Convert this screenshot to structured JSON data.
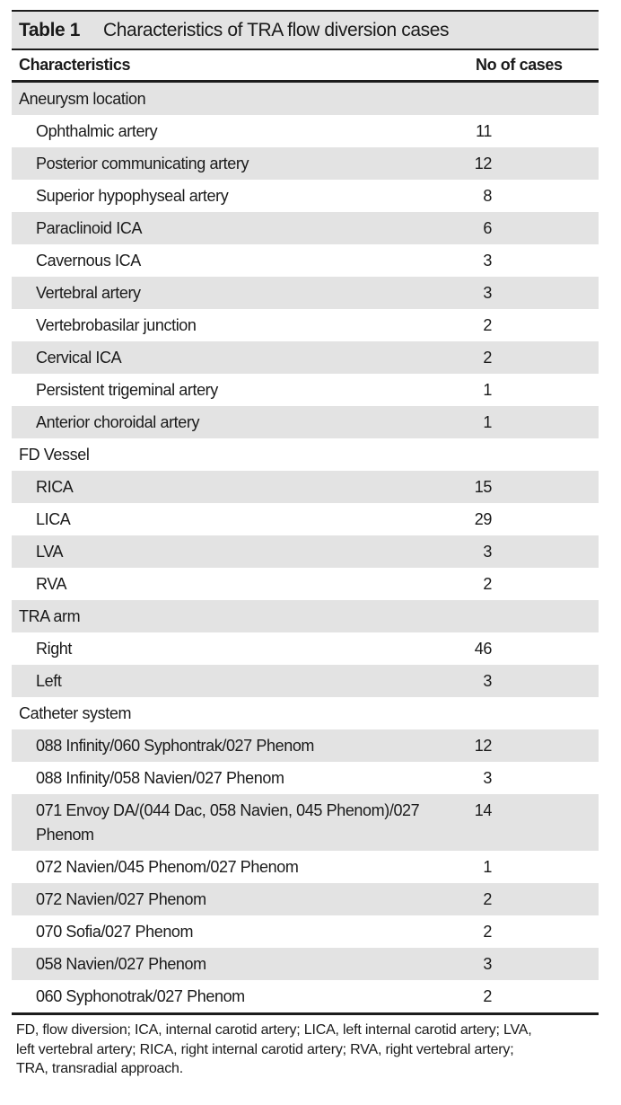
{
  "table": {
    "label": "Table 1",
    "caption": "Characteristics of TRA flow diversion cases",
    "columns": [
      "Characteristics",
      "No of cases"
    ],
    "sections": [
      {
        "header": "Aneurysm location",
        "rows": [
          {
            "label": "Ophthalmic artery",
            "cases": 11
          },
          {
            "label": "Posterior communicating artery",
            "cases": 12
          },
          {
            "label": "Superior hypophyseal artery",
            "cases": 8
          },
          {
            "label": "Paraclinoid ICA",
            "cases": 6
          },
          {
            "label": "Cavernous ICA",
            "cases": 3
          },
          {
            "label": "Vertebral artery",
            "cases": 3
          },
          {
            "label": "Vertebrobasilar junction",
            "cases": 2
          },
          {
            "label": "Cervical ICA",
            "cases": 2
          },
          {
            "label": "Persistent trigeminal artery",
            "cases": 1
          },
          {
            "label": "Anterior choroidal artery",
            "cases": 1
          }
        ]
      },
      {
        "header": "FD Vessel",
        "rows": [
          {
            "label": "RICA",
            "cases": 15
          },
          {
            "label": "LICA",
            "cases": 29
          },
          {
            "label": "LVA",
            "cases": 3
          },
          {
            "label": "RVA",
            "cases": 2
          }
        ]
      },
      {
        "header": "TRA arm",
        "rows": [
          {
            "label": "Right",
            "cases": 46
          },
          {
            "label": "Left",
            "cases": 3
          }
        ]
      },
      {
        "header": "Catheter system",
        "rows": [
          {
            "label": "088 Infinity/060 Syphontrak/027 Phenom",
            "cases": 12
          },
          {
            "label": "088 Infinity/058 Navien/027 Phenom",
            "cases": 3
          },
          {
            "label": "071 Envoy DA/(044 Dac, 058 Navien, 045 Phenom)/027\nPhenom",
            "cases": 14
          },
          {
            "label": "072 Navien/045 Phenom/027 Phenom",
            "cases": 1
          },
          {
            "label": "072 Navien/027 Phenom",
            "cases": 2
          },
          {
            "label": "070 Sofia/027 Phenom",
            "cases": 2
          },
          {
            "label": "058 Navien/027 Phenom",
            "cases": 3
          },
          {
            "label": "060 Syphonotrak/027 Phenom",
            "cases": 2
          }
        ]
      }
    ],
    "footnote": "FD, flow diversion; ICA, internal carotid artery; LICA, left internal carotid artery; LVA,\nleft vertebral artery; RICA, right internal carotid artery; RVA, right vertebral artery;\nTRA, transradial approach."
  },
  "colors": {
    "band": "#e3e3e3",
    "rule": "#1c1c1c",
    "text": "#1a1a1a"
  }
}
